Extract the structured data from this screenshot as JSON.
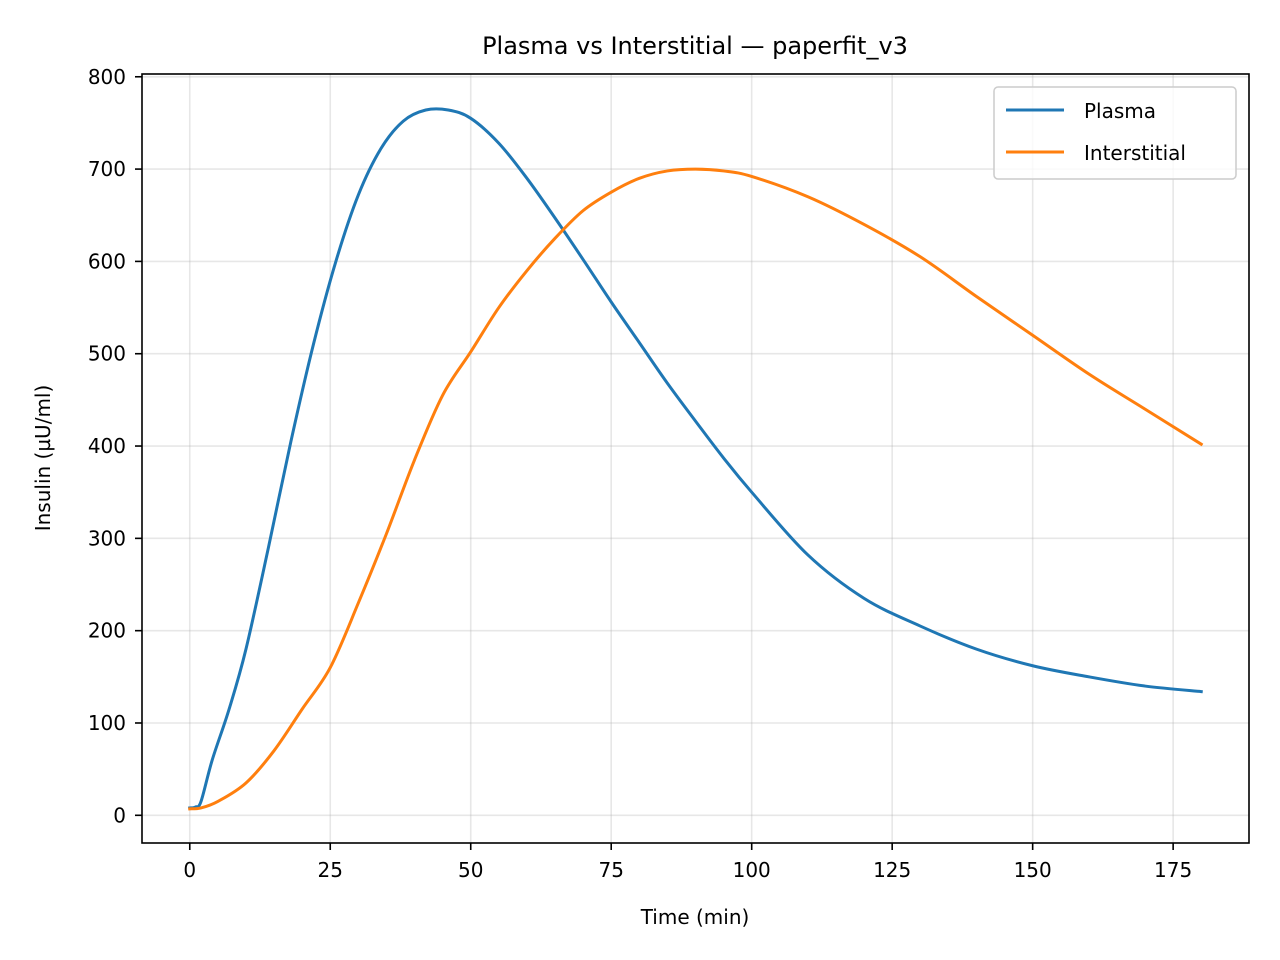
{
  "chart_data": {
    "type": "line",
    "title": "Plasma vs Interstitial — paperfit_v3",
    "xlabel": "Time (min)",
    "ylabel": "Insulin (µU/ml)",
    "xlim": [
      -8.5,
      188.5
    ],
    "ylim": [
      -30,
      803
    ],
    "xticks": [
      0,
      25,
      50,
      75,
      100,
      125,
      150,
      175
    ],
    "yticks": [
      0,
      100,
      200,
      300,
      400,
      500,
      600,
      700,
      800
    ],
    "grid": true,
    "legend_position": "upper-right",
    "series": [
      {
        "name": "Plasma",
        "color": "#1f77b4",
        "x": [
          0,
          1,
          2,
          4,
          7,
          10,
          14,
          18,
          22,
          26,
          30,
          34,
          38,
          42,
          46,
          50,
          55,
          60,
          65,
          70,
          75,
          80,
          85,
          90,
          95,
          100,
          110,
          120,
          130,
          140,
          150,
          160,
          170,
          180
        ],
        "y": [
          8,
          9,
          15,
          60,
          115,
          180,
          290,
          405,
          510,
          600,
          672,
          722,
          752,
          764,
          764,
          755,
          728,
          690,
          647,
          602,
          556,
          512,
          468,
          427,
          387,
          350,
          282,
          235,
          205,
          180,
          162,
          150,
          140,
          134
        ]
      },
      {
        "name": "Interstitial",
        "color": "#ff7f0e",
        "x": [
          0,
          2,
          5,
          10,
          15,
          20,
          25,
          30,
          35,
          40,
          45,
          50,
          55,
          60,
          65,
          70,
          75,
          80,
          85,
          90,
          95,
          100,
          110,
          120,
          130,
          140,
          150,
          160,
          170,
          180
        ],
        "y": [
          7,
          8,
          15,
          35,
          70,
          115,
          160,
          230,
          305,
          385,
          455,
          502,
          550,
          590,
          625,
          655,
          675,
          690,
          698,
          700,
          698,
          692,
          670,
          640,
          605,
          562,
          520,
          478,
          440,
          402
        ]
      }
    ]
  }
}
